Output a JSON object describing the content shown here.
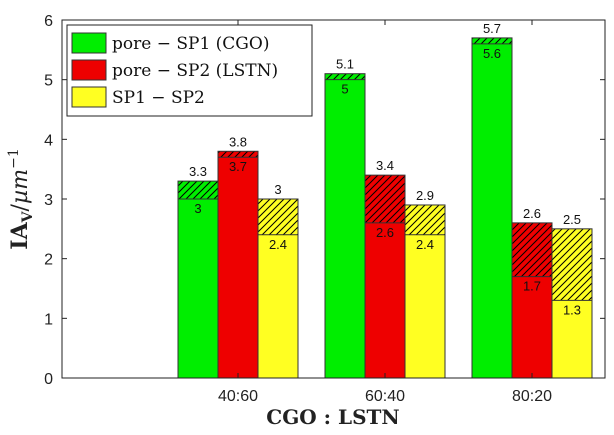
{
  "chart_data": {
    "type": "bar",
    "categories": [
      "40:60",
      "60:40",
      "80:20"
    ],
    "xlabel": "CGO : LSTN",
    "ylabel": {
      "main": "IA",
      "sub": "V",
      "slash": "/",
      "mu": "µ",
      "m": "m",
      "exp": "−1"
    },
    "ylim": [
      0,
      6
    ],
    "yticks": [
      0,
      1,
      2,
      3,
      4,
      5,
      6
    ],
    "grid": false,
    "legend_position": "top-left",
    "hatch": "upper segment hatched between lower and upper values",
    "series": [
      {
        "name": "pore − SP1 (CGO)",
        "color": "#00ee00",
        "lower": [
          3,
          5,
          5.6
        ],
        "upper": [
          3.3,
          5.1,
          5.7
        ],
        "lower_labels": [
          "3",
          "5",
          "5.6"
        ],
        "upper_labels": [
          "3.3",
          "5.1",
          "5.7"
        ]
      },
      {
        "name": "pore − SP2 (LSTN)",
        "color": "#ee0000",
        "lower": [
          3.7,
          2.6,
          1.7
        ],
        "upper": [
          3.8,
          3.4,
          2.6
        ],
        "lower_labels": [
          "3.7",
          "2.6",
          "1.7"
        ],
        "upper_labels": [
          "3.8",
          "3.4",
          "2.6"
        ]
      },
      {
        "name": "SP1 − SP2",
        "color": "#ffff22",
        "lower": [
          2.4,
          2.4,
          1.3
        ],
        "upper": [
          3,
          2.9,
          2.5
        ],
        "lower_labels": [
          "2.4",
          "2.4",
          "1.3"
        ],
        "upper_labels": [
          "3",
          "2.9",
          "2.5"
        ]
      }
    ]
  }
}
